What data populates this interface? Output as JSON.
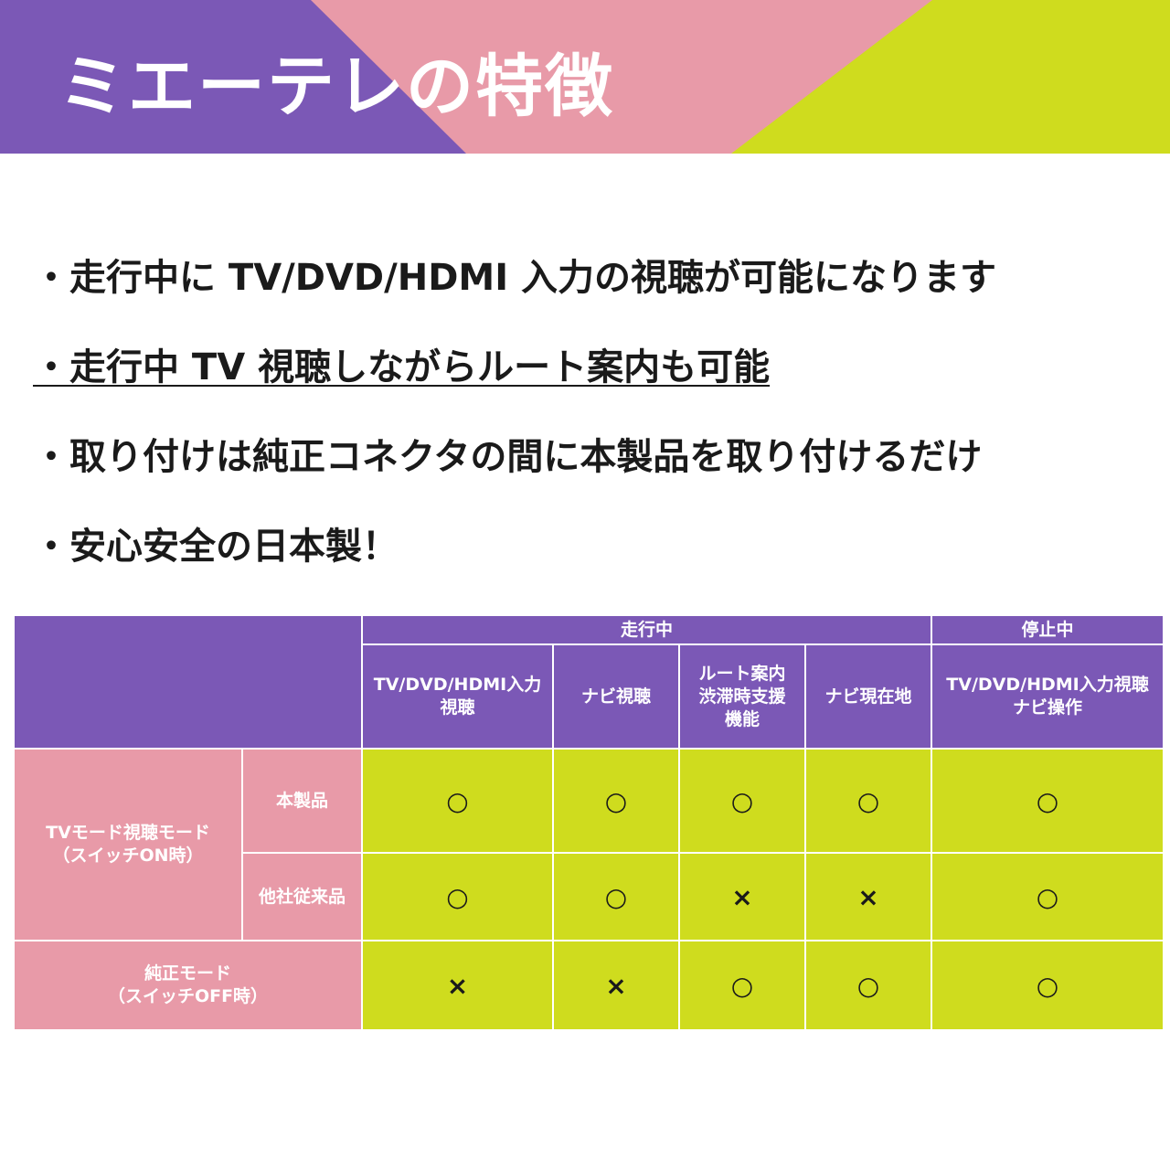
{
  "banner": {
    "title": "ミエーテレの特徴",
    "colors": {
      "purple": "#7b58b6",
      "pink": "#e89aa8",
      "lime": "#cfdc1e"
    }
  },
  "features": [
    "・走行中に TV/DVD/HDMI 入力の視聴が可能になります",
    "・走行中 TV 視聴しながらルート案内も可能",
    "・取り付けは純正コネクタの間に本製品を取り付けるだけ",
    "・安心安全の日本製！"
  ],
  "table": {
    "group_headers": {
      "driving": "走行中",
      "stopped": "停止中"
    },
    "columns": [
      "TV/DVD/HDMI入力\n視聴",
      "ナビ視聴",
      "ルート案内\n渋滞時支援\n機能",
      "ナビ現在地",
      "TV/DVD/HDMI入力視聴\nナビ操作"
    ],
    "mode_labels": {
      "tv_mode": "TVモード視聴モード\n（スイッチON時）",
      "genuine_mode": "純正モード\n（スイッチOFF時）"
    },
    "product_labels": {
      "this_product": "本製品",
      "competitor": "他社従来品"
    },
    "rows": [
      [
        "○",
        "○",
        "○",
        "○",
        "○"
      ],
      [
        "○",
        "○",
        "×",
        "×",
        "○"
      ],
      [
        "×",
        "×",
        "○",
        "○",
        "○"
      ]
    ]
  }
}
